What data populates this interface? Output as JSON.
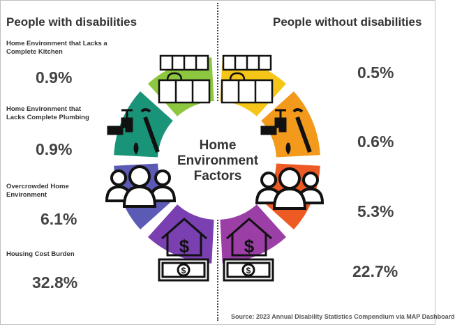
{
  "headings": {
    "left": "People with disabilities",
    "right": "People without disabilities"
  },
  "center_title": [
    "Home",
    "Environment",
    "Factors"
  ],
  "source": "Source: 2023 Annual Disability Statistics Compendium via MAP Dashboard",
  "chart_data": {
    "type": "table",
    "title": "",
    "categories": [
      "Home Environment that Lacks a Complete Kitchen",
      "Home Environment that Lacks Complete Plumbing",
      "Overcrowded Home Environment",
      "Housing Cost Burden"
    ],
    "series": [
      {
        "name": "People with disabilities",
        "values": [
          0.9,
          0.9,
          6.1,
          32.8
        ]
      },
      {
        "name": "People without disabilities",
        "values": [
          0.5,
          0.6,
          5.3,
          22.7
        ]
      }
    ],
    "labels": {
      "left": [
        "0.9%",
        "0.9%",
        "6.1%",
        "32.8%"
      ],
      "right": [
        "0.5%",
        "0.6%",
        "5.3%",
        "22.7%"
      ],
      "category_lines": [
        [
          "Home Environment that Lacks a",
          "Complete Kitchen"
        ],
        [
          "Home Environment that",
          "Lacks Complete Plumbing"
        ],
        [
          "Overcrowded Home",
          "Environment"
        ],
        [
          "Housing Cost Burden"
        ]
      ]
    },
    "unit": "%"
  },
  "colors": {
    "left": [
      "#8dc63f",
      "#1a9479",
      "#5b5ab5",
      "#7a3fb0"
    ],
    "right": [
      "#f5c518",
      "#f39a1c",
      "#ee5a24",
      "#9b3fa6"
    ]
  },
  "icons": [
    "kitchen-icon",
    "faucet-wrench-icon",
    "people-group-icon",
    "house-money-icon"
  ]
}
